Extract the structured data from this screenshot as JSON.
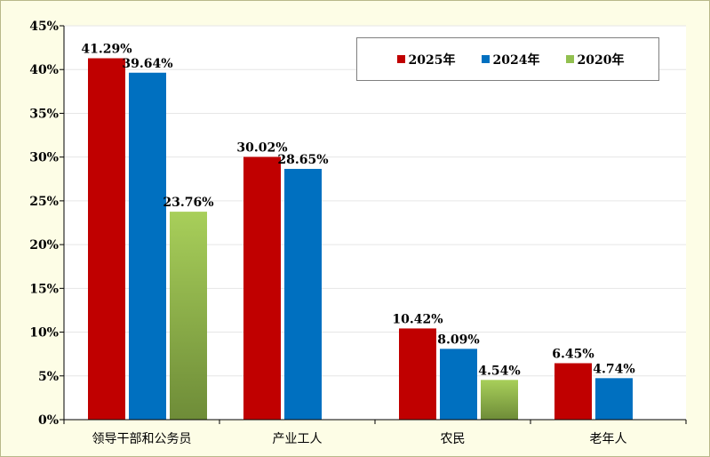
{
  "chart_data": {
    "type": "bar",
    "categories": [
      "领导干部和公务员",
      "产业工人",
      "农民",
      "老年人"
    ],
    "series": [
      {
        "name": "2025年",
        "values": [
          41.29,
          30.02,
          10.42,
          6.45
        ],
        "labels": [
          "41.29%",
          "30.02%",
          "10.42%",
          "6.45%"
        ],
        "color": "#c00000"
      },
      {
        "name": "2024年",
        "values": [
          39.64,
          28.65,
          8.09,
          4.74
        ],
        "labels": [
          "39.64%",
          "28.65%",
          "8.09%",
          "4.74%"
        ],
        "color": "#0070c0"
      },
      {
        "name": "2020年",
        "values": [
          23.76,
          null,
          4.54,
          null
        ],
        "labels": [
          "23.76%",
          null,
          "4.54%",
          null
        ],
        "color": "#92c050"
      }
    ],
    "yticks": [
      "0%",
      "5%",
      "10%",
      "15%",
      "20%",
      "25%",
      "30%",
      "35%",
      "40%",
      "45%"
    ],
    "ylim": [
      0,
      45
    ],
    "grid": true,
    "legend_position": "top-right"
  }
}
